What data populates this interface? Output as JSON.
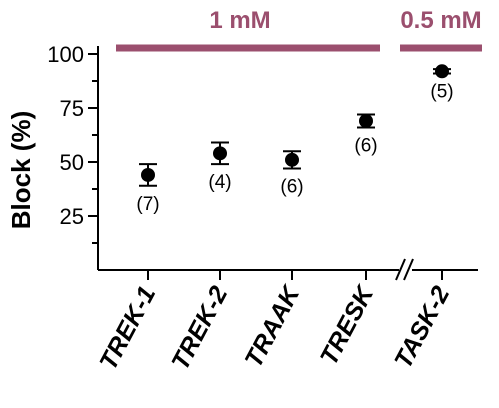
{
  "chart_data": {
    "type": "scatter",
    "ylabel": "Block (%)",
    "ylim": [
      0,
      100
    ],
    "yticks": [
      25,
      50,
      75,
      100
    ],
    "categories": [
      "TREK-1",
      "TREK-2",
      "TRAAK",
      "TRESK",
      "TASK-2"
    ],
    "values": [
      44,
      54,
      51,
      69,
      92
    ],
    "errors": [
      5,
      5,
      4,
      3,
      1
    ],
    "n_labels": [
      "(7)",
      "(4)",
      "(6)",
      "(6)",
      "(5)"
    ],
    "axis_break": "between TRESK and TASK-2",
    "condition_bars": [
      {
        "label": "1 mM",
        "categories": [
          "TREK-1",
          "TREK-2",
          "TRAAK",
          "TRESK"
        ]
      },
      {
        "label": "0.5 mM",
        "categories": [
          "TASK-2"
        ]
      }
    ],
    "colors": {
      "condition_bar": "#9b4f6e",
      "points": "#000000"
    }
  }
}
